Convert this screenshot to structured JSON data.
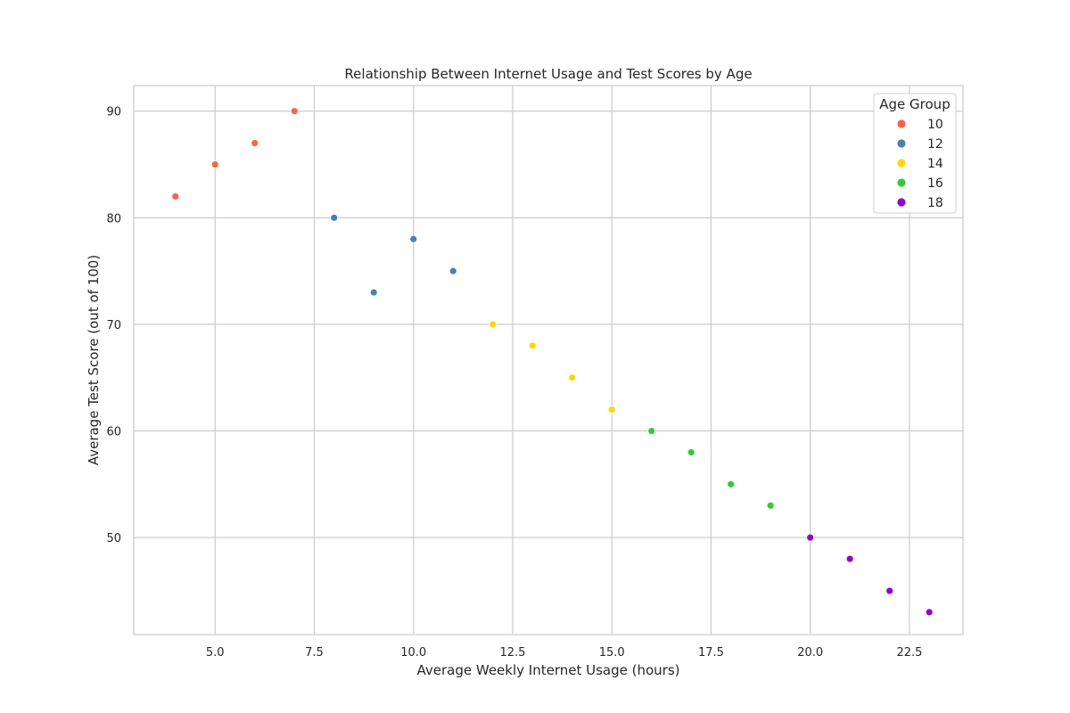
{
  "chart_data": {
    "type": "scatter",
    "title": "Relationship Between Internet Usage and Test Scores by Age",
    "xlabel": "Average Weekly Internet Usage (hours)",
    "ylabel": "Average Test Score (out of 100)",
    "xlim": [
      2.95,
      23.85
    ],
    "ylim": [
      40.9,
      92.4
    ],
    "xticks": [
      "5.0",
      "7.5",
      "10.0",
      "12.5",
      "15.0",
      "17.5",
      "20.0",
      "22.5"
    ],
    "yticks": [
      "50",
      "60",
      "70",
      "80",
      "90"
    ],
    "grid": true,
    "legend": {
      "title": "Age Group",
      "position": "top-right"
    },
    "series": [
      {
        "name": "10",
        "color": "#ff6347",
        "x": [
          4,
          5,
          6,
          7
        ],
        "y": [
          82,
          85,
          87,
          90
        ]
      },
      {
        "name": "12",
        "color": "#4682b4",
        "x": [
          8,
          9,
          10,
          11
        ],
        "y": [
          80,
          73,
          78,
          75
        ]
      },
      {
        "name": "14",
        "color": "#ffd700",
        "x": [
          12,
          13,
          14,
          15
        ],
        "y": [
          70,
          68,
          65,
          62
        ]
      },
      {
        "name": "16",
        "color": "#32cd32",
        "x": [
          16,
          17,
          18,
          19
        ],
        "y": [
          60,
          58,
          55,
          53
        ]
      },
      {
        "name": "18",
        "color": "#9400d3",
        "x": [
          20,
          21,
          22,
          23
        ],
        "y": [
          50,
          48,
          45,
          43
        ]
      }
    ]
  }
}
